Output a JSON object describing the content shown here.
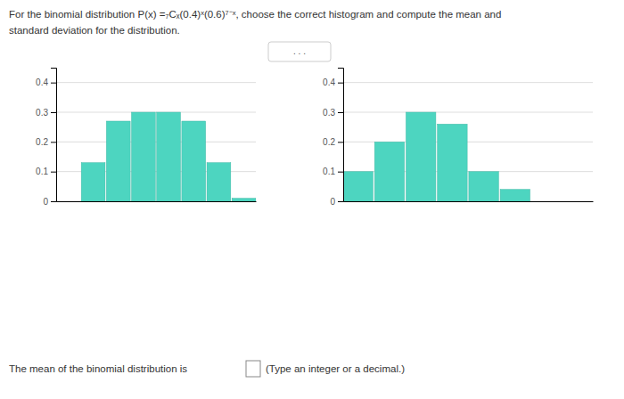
{
  "title": "For the binomial distribution P(x) =₇Cₓ(0.4)ˣ(0.6)⁷⁻ˣ, choose the correct histogram and compute the mean and",
  "subtitle": "standard deviation for the distribution.",
  "annotations": [
    ". . .",
    "The mean of the binomial distribution is",
    "(Type an integer or a decimal.)"
  ],
  "chart_data": [
    {
      "type": "bar",
      "categories": [
        null,
        null,
        null,
        null,
        null,
        null,
        null,
        null
      ],
      "values": [
        0.0,
        0.13,
        0.27,
        0.3,
        0.3,
        0.27,
        0.13,
        0.01
      ],
      "color": "#4DD5C0",
      "ylim": [
        0,
        0.45
      ],
      "yticks": [
        0,
        0.1,
        0.2,
        0.3,
        0.4
      ],
      "grid": true,
      "tick_labels": "y"
    },
    {
      "type": "bar",
      "categories": [
        null,
        null,
        null,
        null,
        null,
        null,
        null,
        null
      ],
      "values": [
        0.1,
        0.2,
        0.3,
        0.26,
        0.1,
        0.04,
        0.0,
        0.0
      ],
      "color": "#4DD5C0",
      "ylim": [
        0,
        0.45
      ],
      "yticks": [
        0,
        0.1,
        0.2,
        0.3,
        0.4
      ],
      "grid": true,
      "tick_labels": "y"
    }
  ]
}
